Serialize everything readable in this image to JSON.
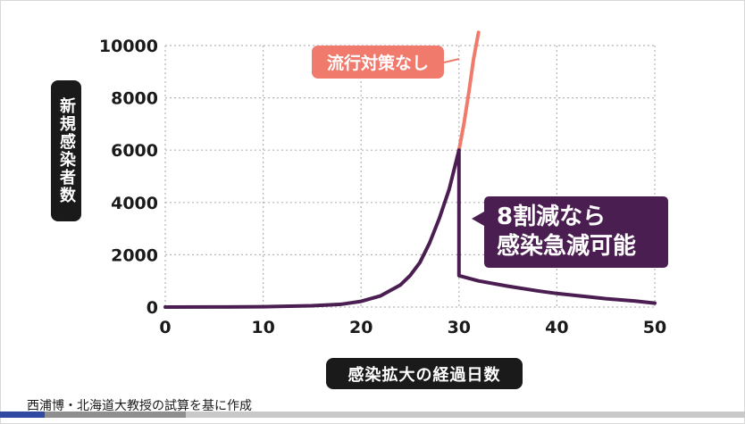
{
  "chart_data": {
    "type": "line",
    "xlabel": "感染拡大の経過日数",
    "ylabel": "新規感染者数",
    "xlim": [
      0,
      50
    ],
    "ylim": [
      0,
      10000
    ],
    "xticks": [
      0,
      10,
      20,
      30,
      40,
      50
    ],
    "yticks": [
      0,
      2000,
      4000,
      6000,
      8000,
      10000
    ],
    "grid": true,
    "series": [
      {
        "name": "流行対策なし",
        "color": "#f07b6c",
        "x": [
          30,
          30.5,
          31,
          31.5,
          32
        ],
        "y": [
          6000,
          7000,
          8200,
          9500,
          10500
        ]
      },
      {
        "name": "8割減なら感染急減可能",
        "color": "#4a1e50",
        "x": [
          0,
          5,
          10,
          15,
          18,
          20,
          22,
          24,
          25,
          26,
          27,
          28,
          29,
          30,
          30,
          32,
          35,
          38,
          40,
          43,
          45,
          48,
          50
        ],
        "y": [
          0,
          5,
          15,
          50,
          110,
          220,
          430,
          840,
          1200,
          1700,
          2450,
          3400,
          4500,
          6000,
          1200,
          1000,
          800,
          620,
          520,
          400,
          320,
          230,
          150
        ]
      }
    ],
    "annotations": [
      {
        "text": "流行対策なし",
        "color": "#f07b6c"
      },
      {
        "lines": [
          "8割減なら",
          "感染急減可能"
        ],
        "color": "#4a1e50"
      }
    ]
  },
  "source_note": "西浦博・北海道大教授の試算を基に作成",
  "video": {
    "progress": 0.06,
    "buffered": 0.25
  }
}
